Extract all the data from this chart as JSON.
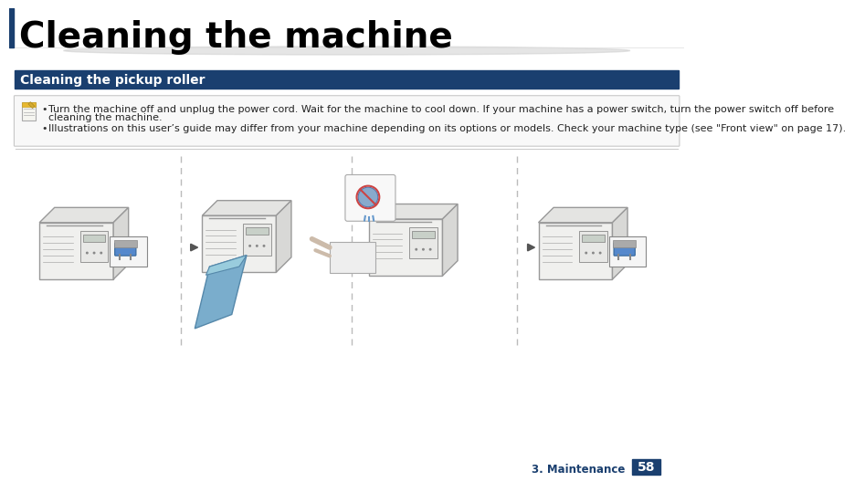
{
  "title": "Cleaning the machine",
  "section_header": "Cleaning the pickup roller",
  "note_line1": "Turn the machine off and unplug the power cord. Wait for the machine to cool down. If your machine has a power switch, turn the power switch off before",
  "note_line2": "cleaning the machine.",
  "note_line3": "Illustrations on this user’s guide may differ from your machine depending on its options or models. Check your machine type (see \"Front view\" on page 17).",
  "footer_text": "3. Maintenance",
  "page_number": "58",
  "bg_color": "#ffffff",
  "title_color": "#000000",
  "header_bg": "#1a3f6f",
  "header_text_color": "#ffffff",
  "footer_section_color": "#1a3f6f",
  "footer_page_bg": "#1a3f6f",
  "footer_page_color": "#ffffff",
  "title_bar_color": "#1a3f6f"
}
